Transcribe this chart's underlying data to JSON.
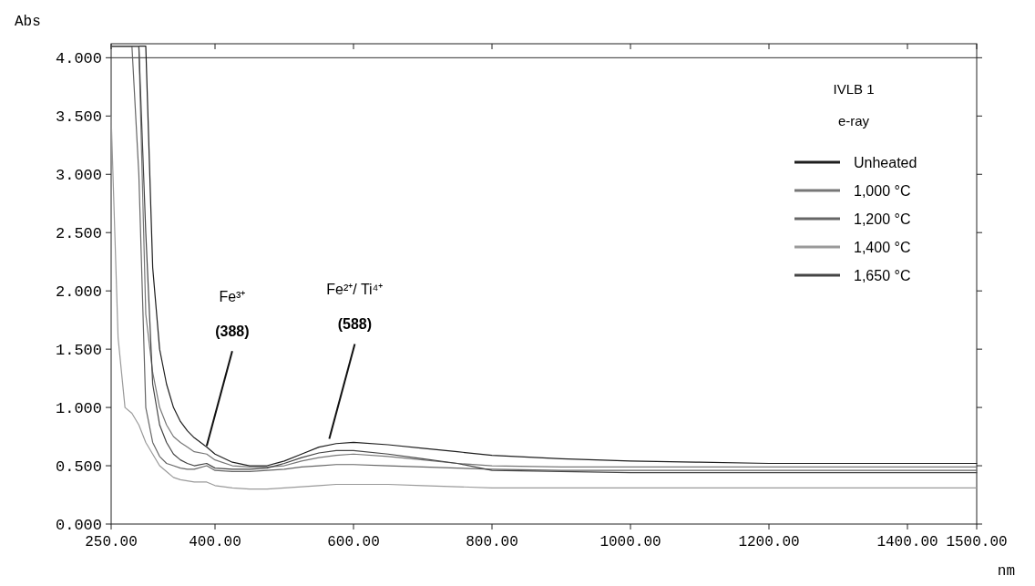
{
  "chart_data": {
    "type": "line",
    "title": "IVLB 1",
    "subtitle": "e-ray",
    "xlabel": "nm",
    "ylabel": "Abs",
    "x": [
      250,
      260,
      270,
      280,
      290,
      300,
      310,
      320,
      330,
      340,
      350,
      360,
      370,
      388,
      400,
      425,
      450,
      475,
      500,
      525,
      550,
      575,
      600,
      650,
      700,
      750,
      800,
      900,
      1000,
      1100,
      1200,
      1300,
      1400,
      1500
    ],
    "series": [
      {
        "name": "Unheated",
        "color": "#1e1e1e",
        "values": [
          4.1,
          4.1,
          4.1,
          4.1,
          4.1,
          4.1,
          2.2,
          1.5,
          1.2,
          1.0,
          0.88,
          0.8,
          0.74,
          0.66,
          0.6,
          0.53,
          0.5,
          0.5,
          0.54,
          0.6,
          0.66,
          0.69,
          0.7,
          0.68,
          0.65,
          0.62,
          0.59,
          0.56,
          0.54,
          0.53,
          0.52,
          0.52,
          0.52,
          0.52
        ]
      },
      {
        "name": "1,000 °C",
        "color": "#777777",
        "values": [
          4.1,
          4.1,
          4.1,
          4.1,
          4.1,
          1.8,
          1.3,
          1.0,
          0.85,
          0.75,
          0.7,
          0.66,
          0.62,
          0.6,
          0.55,
          0.5,
          0.49,
          0.49,
          0.5,
          0.54,
          0.57,
          0.59,
          0.6,
          0.58,
          0.55,
          0.52,
          0.5,
          0.49,
          0.49,
          0.49,
          0.49,
          0.49,
          0.49,
          0.49
        ]
      },
      {
        "name": "1,200 °C",
        "color": "#666666",
        "values": [
          4.1,
          4.1,
          4.1,
          4.1,
          3.0,
          1.0,
          0.7,
          0.58,
          0.52,
          0.5,
          0.48,
          0.47,
          0.47,
          0.5,
          0.46,
          0.45,
          0.45,
          0.46,
          0.47,
          0.49,
          0.5,
          0.51,
          0.51,
          0.5,
          0.49,
          0.48,
          0.47,
          0.46,
          0.46,
          0.46,
          0.46,
          0.46,
          0.46,
          0.46
        ]
      },
      {
        "name": "1,400 °C",
        "color": "#9a9a9a",
        "values": [
          3.5,
          1.6,
          1.0,
          0.95,
          0.85,
          0.7,
          0.6,
          0.5,
          0.45,
          0.4,
          0.38,
          0.37,
          0.36,
          0.36,
          0.33,
          0.31,
          0.3,
          0.3,
          0.31,
          0.32,
          0.33,
          0.34,
          0.34,
          0.34,
          0.33,
          0.32,
          0.31,
          0.31,
          0.31,
          0.31,
          0.31,
          0.31,
          0.31,
          0.31
        ]
      },
      {
        "name": "1,650 °C",
        "color": "#444444",
        "values": [
          4.1,
          4.1,
          4.1,
          4.1,
          4.1,
          2.5,
          1.2,
          0.85,
          0.7,
          0.6,
          0.55,
          0.52,
          0.5,
          0.52,
          0.48,
          0.47,
          0.47,
          0.48,
          0.52,
          0.57,
          0.61,
          0.63,
          0.63,
          0.6,
          0.56,
          0.52,
          0.46,
          0.45,
          0.44,
          0.44,
          0.44,
          0.44,
          0.44,
          0.44
        ]
      }
    ],
    "xlim": [
      250,
      1500
    ],
    "ylim": [
      0,
      4.12
    ],
    "xticks": [
      {
        "value": 250,
        "label": "250.00"
      },
      {
        "value": 400,
        "label": "400.00"
      },
      {
        "value": 600,
        "label": "600.00"
      },
      {
        "value": 800,
        "label": "800.00"
      },
      {
        "value": 1000,
        "label": "1000.00"
      },
      {
        "value": 1200,
        "label": "1200.00"
      },
      {
        "value": 1400,
        "label": "1400.00"
      },
      {
        "value": 1500,
        "label": "1500.00"
      }
    ],
    "yticks": [
      {
        "value": 0,
        "label": "0.000"
      },
      {
        "value": 0.5,
        "label": "0.500"
      },
      {
        "value": 1,
        "label": "1.000"
      },
      {
        "value": 1.5,
        "label": "1.500"
      },
      {
        "value": 2,
        "label": "2.000"
      },
      {
        "value": 2.5,
        "label": "2.500"
      },
      {
        "value": 3,
        "label": "3.000"
      },
      {
        "value": 3.5,
        "label": "3.500"
      },
      {
        "value": 4,
        "label": "4.000"
      }
    ],
    "ref_lines": [
      {
        "axis": "y",
        "value": 4,
        "color": "#333333"
      }
    ],
    "annotations": [
      "Fe³⁺",
      {
        "text": "(388)",
        "x": 388,
        "y": 0.64
      },
      "Fe²⁺/ Ti⁴⁺",
      {
        "text": "(588)",
        "x": 565,
        "y": 0.7
      }
    ],
    "legend": "top right",
    "grid": false,
    "line_style": "solid",
    "marker": "none"
  }
}
